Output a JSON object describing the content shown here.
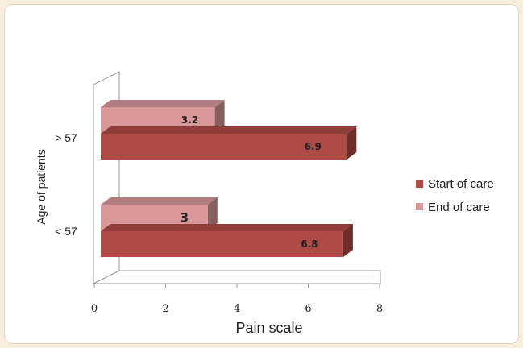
{
  "chart_data": {
    "type": "bar",
    "orientation": "horizontal",
    "categories": [
      "> 57",
      "< 57"
    ],
    "series": [
      {
        "name": "Start of care",
        "values": [
          6.9,
          6.8
        ],
        "color": "#b04a46",
        "labels": [
          "6.9",
          "6.8"
        ]
      },
      {
        "name": "End of care",
        "values": [
          3.2,
          3
        ],
        "color": "#d9999a",
        "labels": [
          "3.2",
          "3"
        ]
      }
    ],
    "xlabel": "Pain scale",
    "ylabel": "Age of patients",
    "xlim": [
      0,
      8
    ],
    "xticks": [
      "0",
      "2",
      "4",
      "6",
      "8"
    ],
    "legend_position": "right",
    "grid": false,
    "style_3d": true
  }
}
